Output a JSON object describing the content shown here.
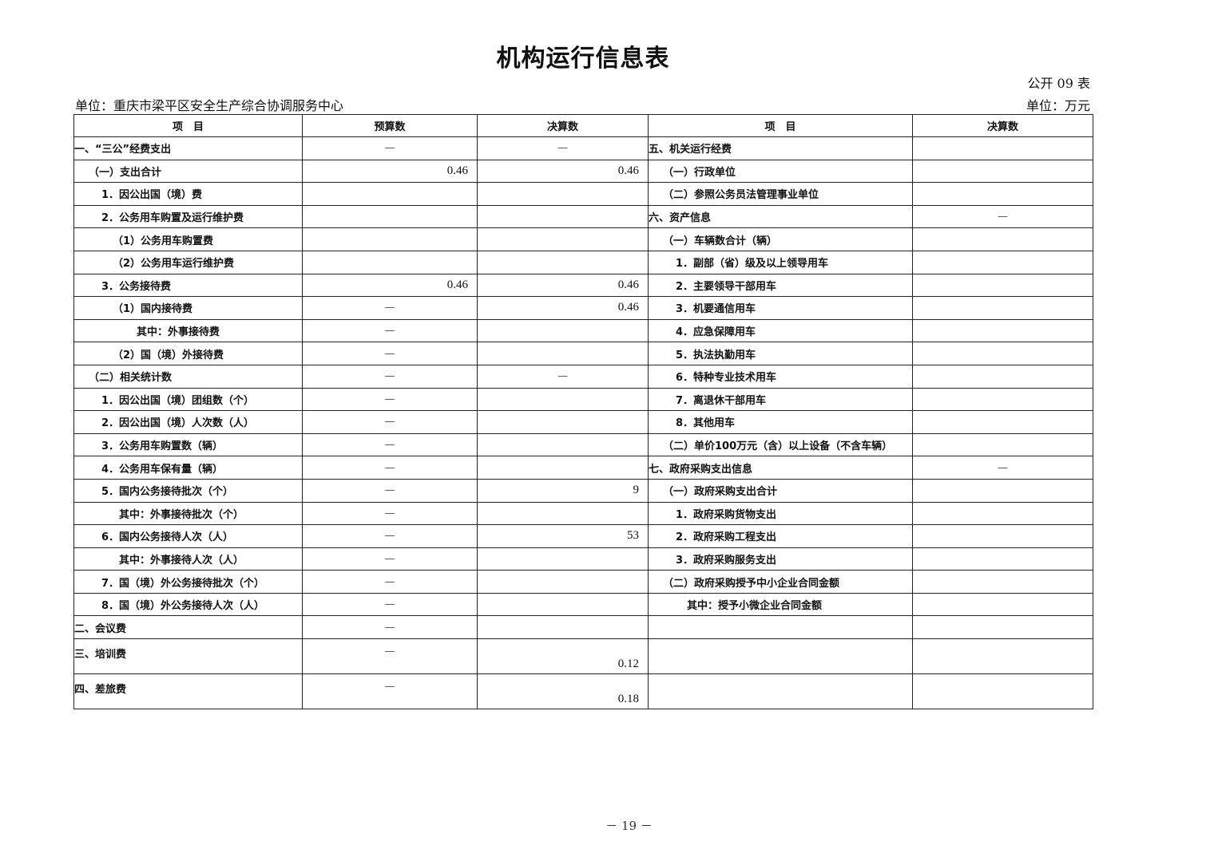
{
  "title": "机构运行信息表",
  "form_no": "公开 09 表",
  "unit_org": "单位：重庆市梁平区安全生产综合协调服务中心",
  "unit_currency": "单位：万元",
  "headers": [
    "项　目",
    "预算数",
    "决算数",
    "项　目",
    "决算数"
  ],
  "rows": [
    {
      "l": "一、“三公”经费支出",
      "ll": 0,
      "b": "—",
      "f": "—",
      "r": "五、机关运行经费",
      "rl": 0,
      "rf": ""
    },
    {
      "l": "（一）支出合计",
      "ll": 1,
      "b": "0.46",
      "f": "0.46",
      "r": "（一）行政单位",
      "rl": 1,
      "rf": ""
    },
    {
      "l": "1．因公出国（境）费",
      "ll": 2,
      "b": "",
      "f": "",
      "r": "（二）参照公务员法管理事业单位",
      "rl": 1,
      "rf": ""
    },
    {
      "l": "2．公务用车购置及运行维护费",
      "ll": 2,
      "b": "",
      "f": "",
      "r": "六、资产信息",
      "rl": 0,
      "rf": "—"
    },
    {
      "l": "（1）公务用车购置费",
      "ll": 3,
      "b": "",
      "f": "",
      "r": "（一）车辆数合计（辆）",
      "rl": 1,
      "rf": ""
    },
    {
      "l": "（2）公务用车运行维护费",
      "ll": 3,
      "b": "",
      "f": "",
      "r": "1．副部（省）级及以上领导用车",
      "rl": 2,
      "rf": ""
    },
    {
      "l": "3．公务接待费",
      "ll": 2,
      "b": "0.46",
      "f": "0.46",
      "r": "2．主要领导干部用车",
      "rl": 2,
      "rf": ""
    },
    {
      "l": "（1）国内接待费",
      "ll": 3,
      "b": "—",
      "f": "0.46",
      "r": "3．机要通信用车",
      "rl": 2,
      "rf": ""
    },
    {
      "l": "其中：外事接待费",
      "ll": 4,
      "b": "—",
      "f": "",
      "r": "4．应急保障用车",
      "rl": 2,
      "rf": ""
    },
    {
      "l": "（2）国（境）外接待费",
      "ll": 3,
      "b": "—",
      "f": "",
      "r": "5．执法执勤用车",
      "rl": 2,
      "rf": ""
    },
    {
      "l": "（二）相关统计数",
      "ll": 1,
      "b": "—",
      "f": "—",
      "r": "6．特种专业技术用车",
      "rl": 2,
      "rf": ""
    },
    {
      "l": "1．因公出国（境）团组数（个）",
      "ll": 2,
      "b": "—",
      "f": "",
      "r": "7．离退休干部用车",
      "rl": 2,
      "rf": ""
    },
    {
      "l": "2．因公出国（境）人次数（人）",
      "ll": 2,
      "b": "—",
      "f": "",
      "r": "8．其他用车",
      "rl": 2,
      "rf": ""
    },
    {
      "l": "3．公务用车购置数（辆）",
      "ll": 2,
      "b": "—",
      "f": "",
      "r": "（二）单价100万元（含）以上设备（不含车辆）",
      "rl": 1,
      "rf": ""
    },
    {
      "l": "4．公务用车保有量（辆）",
      "ll": 2,
      "b": "—",
      "f": "",
      "r": "七、政府采购支出信息",
      "rl": 0,
      "rf": "—"
    },
    {
      "l": "5．国内公务接待批次（个）",
      "ll": 2,
      "b": "—",
      "f": "9",
      "r": "（一）政府采购支出合计",
      "rl": 1,
      "rf": ""
    },
    {
      "l": "其中：外事接待批次（个）",
      "ll": 5,
      "b": "—",
      "f": "",
      "r": "1．政府采购货物支出",
      "rl": 2,
      "rf": ""
    },
    {
      "l": "6．国内公务接待人次（人）",
      "ll": 2,
      "b": "—",
      "f": "53",
      "r": "2．政府采购工程支出",
      "rl": 2,
      "rf": ""
    },
    {
      "l": "其中：外事接待人次（人）",
      "ll": 5,
      "b": "—",
      "f": "",
      "r": "3．政府采购服务支出",
      "rl": 2,
      "rf": ""
    },
    {
      "l": "7．国（境）外公务接待批次（个）",
      "ll": 2,
      "b": "—",
      "f": "",
      "r": "（二）政府采购授予中小企业合同金额",
      "rl": 1,
      "rf": ""
    },
    {
      "l": "8．国（境）外公务接待人次（人）",
      "ll": 2,
      "b": "—",
      "f": "",
      "r": "其中：授予小微企业合同金额",
      "rl": 3,
      "rf": ""
    },
    {
      "l": "二、会议费",
      "ll": 0,
      "b": "—",
      "f": "",
      "r": "",
      "rl": 0,
      "rf": ""
    },
    {
      "l": "三、培训费",
      "ll": 0,
      "b": "—",
      "f": "0.12",
      "r": "",
      "rl": 0,
      "rf": "",
      "tall": true
    },
    {
      "l": "四、差旅费",
      "ll": 0,
      "b": "—",
      "f": "0.18",
      "r": "",
      "rl": 0,
      "rf": "",
      "tall": true
    }
  ],
  "page_number": "－ 19 －"
}
